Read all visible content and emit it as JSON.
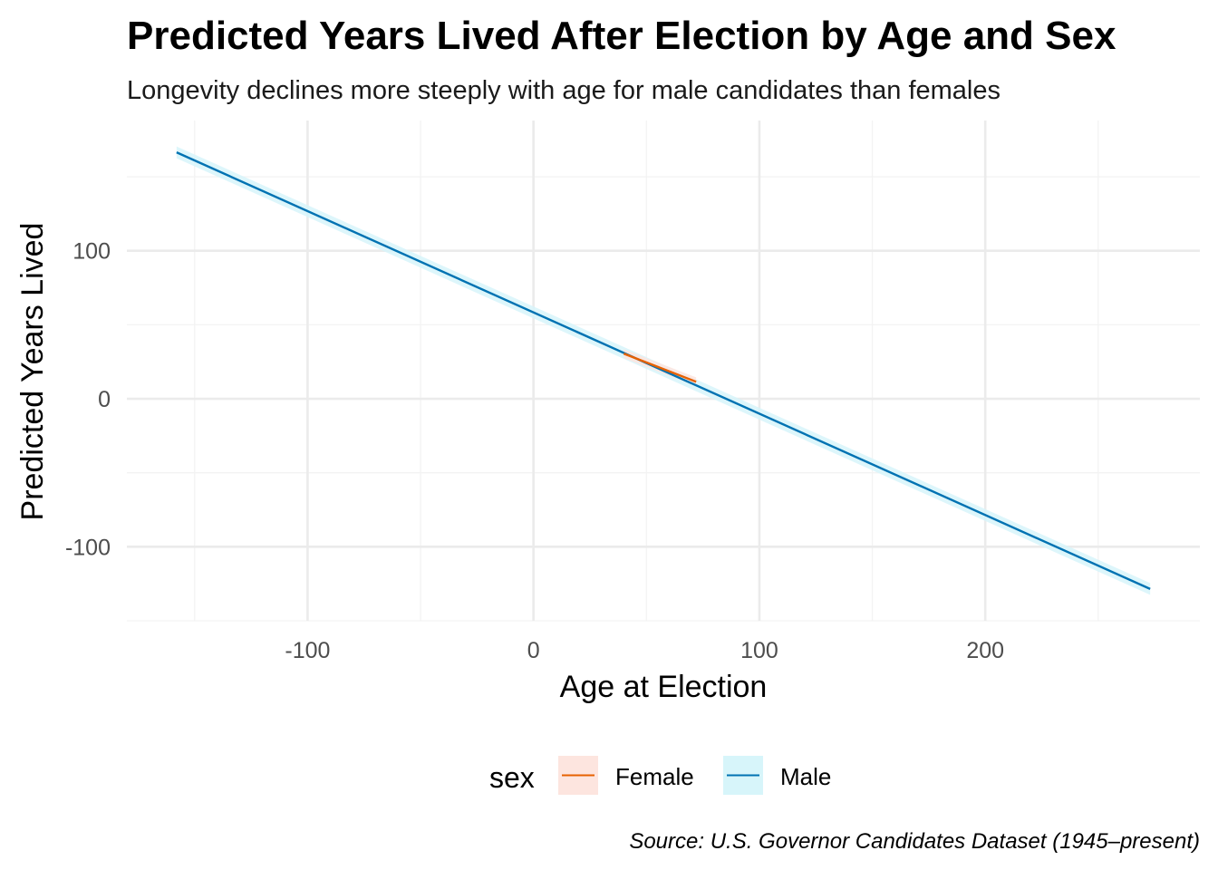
{
  "chart_data": {
    "type": "line",
    "title": "Predicted Years Lived After Election by Age and Sex",
    "subtitle": "Longevity declines more steeply with age for male candidates than females",
    "xlabel": "Age at Election",
    "ylabel": "Predicted Years Lived",
    "caption": "Source: U.S. Governor Candidates Dataset (1945–present)",
    "xlim": [
      -180,
      295
    ],
    "ylim": [
      -150,
      188
    ],
    "x_ticks": [
      -100,
      0,
      100,
      200
    ],
    "y_ticks": [
      -100,
      0,
      100
    ],
    "x_tick_labels": [
      "-100",
      "0",
      "100",
      "200"
    ],
    "y_tick_labels": [
      "-100",
      "0",
      "100"
    ],
    "grid": true,
    "legend": {
      "title": "sex",
      "position": "bottom"
    },
    "series": [
      {
        "name": "Female",
        "color": "#E66101",
        "band_color": "#FDE5DF",
        "x": [
          40,
          72
        ],
        "y": [
          30.5,
          11.5
        ],
        "ci_lower": [
          27.5,
          8.5
        ],
        "ci_upper": [
          33.5,
          14.5
        ]
      },
      {
        "name": "Male",
        "color": "#0072B2",
        "band_color": "#D7F5FA",
        "x": [
          -158,
          273
        ],
        "y": [
          166.5,
          -128.5
        ],
        "ci_lower": [
          162.5,
          -132.5
        ],
        "ci_upper": [
          170.5,
          -124.5
        ]
      }
    ]
  }
}
